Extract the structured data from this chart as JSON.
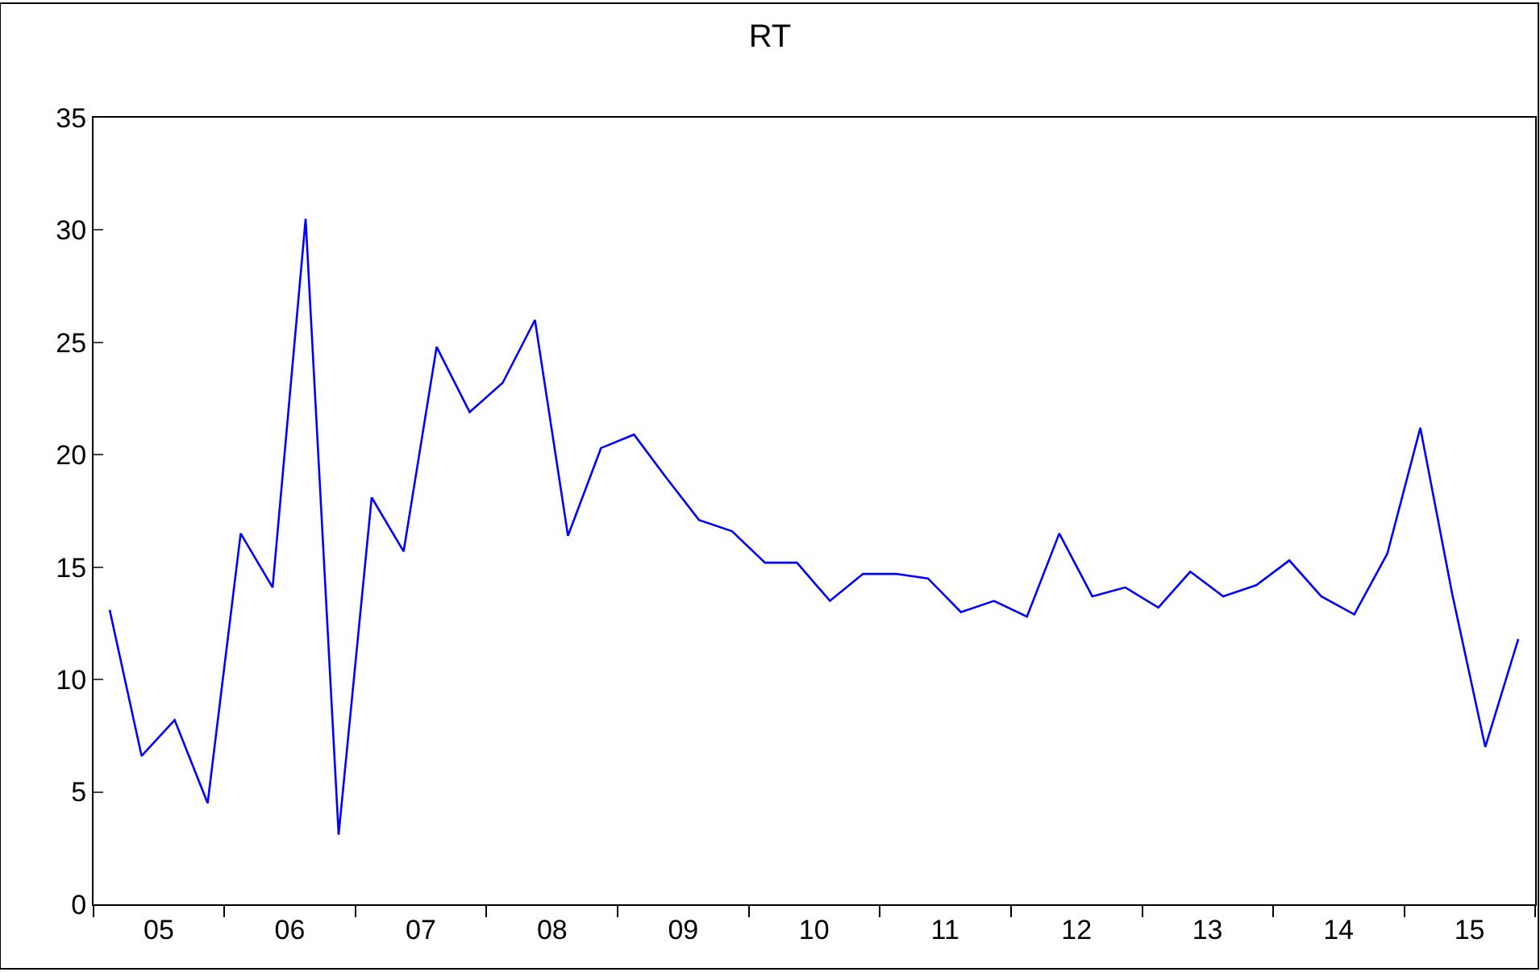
{
  "chart_data": {
    "type": "line",
    "title": "RT",
    "x": [
      "2005-02-15",
      "2005-05-15",
      "2005-08-15",
      "2005-11-15",
      "2006-02-15",
      "2006-05-15",
      "2006-08-15",
      "2006-11-15",
      "2007-02-15",
      "2007-05-15",
      "2007-08-15",
      "2007-11-15",
      "2008-02-15",
      "2008-05-15",
      "2008-08-15",
      "2008-11-15",
      "2009-02-15",
      "2009-05-15",
      "2009-08-15",
      "2009-11-15",
      "2010-02-15",
      "2010-05-15",
      "2010-08-15",
      "2010-11-15",
      "2011-02-15",
      "2011-05-15",
      "2011-08-15",
      "2011-11-15",
      "2012-02-15",
      "2012-05-15",
      "2012-08-15",
      "2012-11-15",
      "2013-02-15",
      "2013-05-15",
      "2013-08-15",
      "2013-11-15",
      "2014-02-15",
      "2014-05-15",
      "2014-08-15",
      "2014-11-15",
      "2015-02-15",
      "2015-05-15",
      "2015-08-15",
      "2015-11-15"
    ],
    "series": [
      {
        "color": "#0000ff",
        "values": [
          13.1,
          6.6,
          8.2,
          4.5,
          16.5,
          14.1,
          30.5,
          3.1,
          18.1,
          15.7,
          24.8,
          21.9,
          23.2,
          26.0,
          16.4,
          20.3,
          20.9,
          19.0,
          17.1,
          16.6,
          15.2,
          15.2,
          13.5,
          14.7,
          14.7,
          14.5,
          13.0,
          13.5,
          12.8,
          16.5,
          13.7,
          14.1,
          13.2,
          14.8,
          13.7,
          14.2,
          15.3,
          13.7,
          12.9,
          15.6,
          21.2,
          13.8,
          7.0,
          11.8
        ]
      }
    ],
    "xlim": [
      "2005-01-01",
      "2016-01-01"
    ],
    "xticks": [
      {
        "value": "2005-01-01",
        "label": null
      },
      {
        "value": "2005-07-02",
        "label": "05"
      },
      {
        "value": "2006-01-01",
        "label": null
      },
      {
        "value": "2006-07-02",
        "label": "06"
      },
      {
        "value": "2007-01-01",
        "label": null
      },
      {
        "value": "2007-07-02",
        "label": "07"
      },
      {
        "value": "2008-01-01",
        "label": null
      },
      {
        "value": "2008-07-02",
        "label": "08"
      },
      {
        "value": "2009-01-01",
        "label": null
      },
      {
        "value": "2009-07-02",
        "label": "09"
      },
      {
        "value": "2010-01-01",
        "label": null
      },
      {
        "value": "2010-07-02",
        "label": "10"
      },
      {
        "value": "2011-01-01",
        "label": null
      },
      {
        "value": "2011-07-02",
        "label": "11"
      },
      {
        "value": "2012-01-01",
        "label": null
      },
      {
        "value": "2012-07-02",
        "label": "12"
      },
      {
        "value": "2013-01-01",
        "label": null
      },
      {
        "value": "2013-07-02",
        "label": "13"
      },
      {
        "value": "2014-01-01",
        "label": null
      },
      {
        "value": "2014-07-02",
        "label": "14"
      },
      {
        "value": "2015-01-01",
        "label": null
      },
      {
        "value": "2015-07-02",
        "label": "15"
      },
      {
        "value": "2016-01-01",
        "label": null
      }
    ],
    "ylim": [
      0,
      35
    ],
    "yticks": [
      0,
      5,
      10,
      15,
      20,
      25,
      30,
      35
    ],
    "marker": "none",
    "line_style": "solid"
  }
}
